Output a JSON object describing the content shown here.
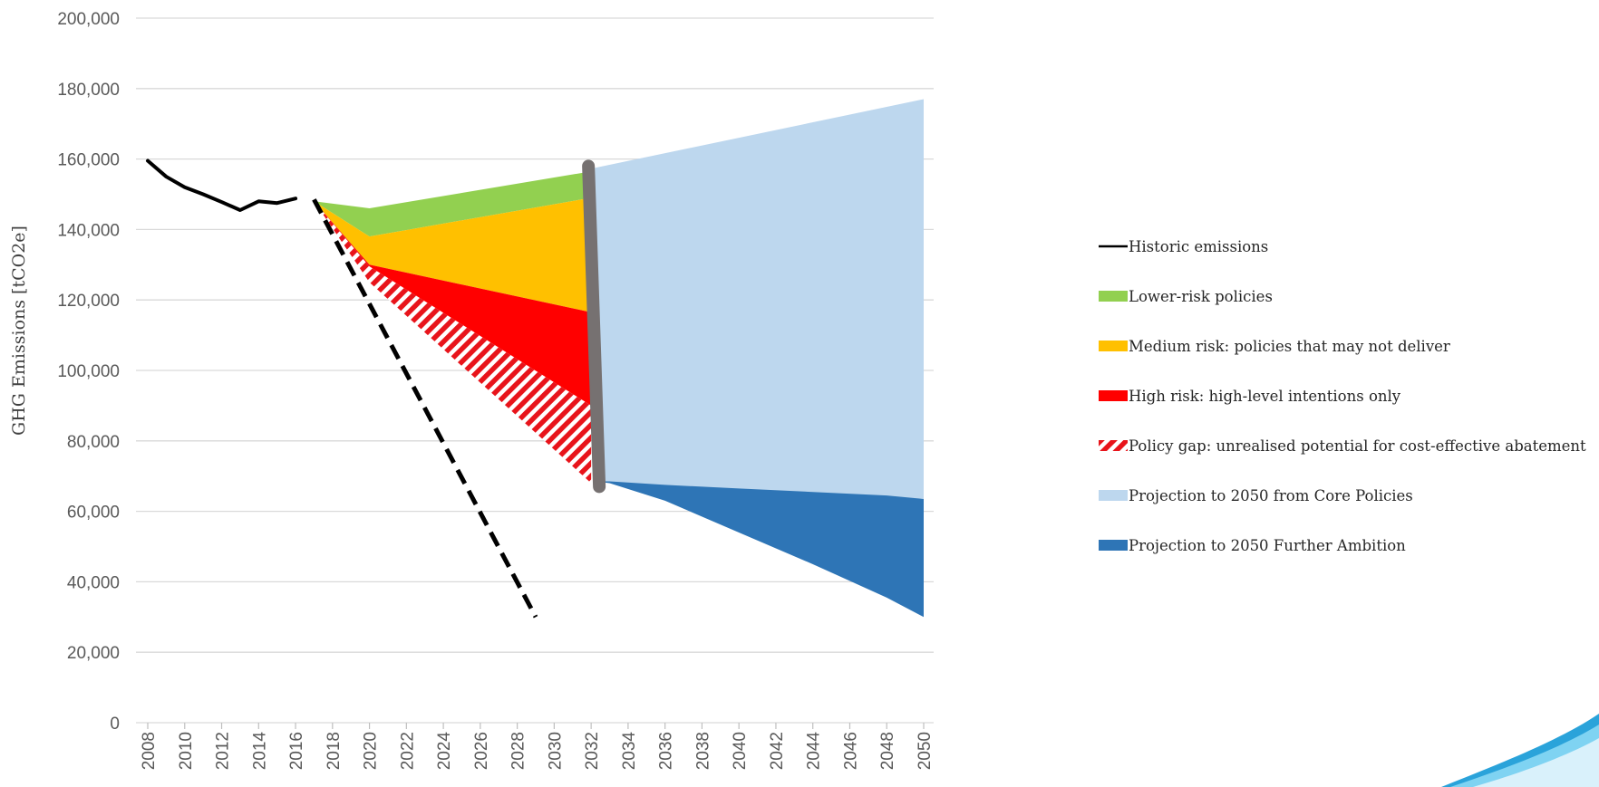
{
  "chart_data": {
    "type": "area",
    "ylabel": "GHG Emissions [tCO2e]",
    "xlabel": "",
    "ylim": [
      0,
      200000
    ],
    "yticks": [
      0,
      20000,
      40000,
      60000,
      80000,
      100000,
      120000,
      140000,
      160000,
      180000,
      200000
    ],
    "ytick_labels": [
      "0",
      "20,000",
      "40,000",
      "60,000",
      "80,000",
      "100,000",
      "120,000",
      "140,000",
      "160,000",
      "180,000",
      "200,000"
    ],
    "xlim": [
      2008,
      2050
    ],
    "xticks": [
      "2008",
      "2010",
      "2012",
      "2014",
      "2016",
      "2018",
      "2020",
      "2022",
      "2024",
      "2026",
      "2028",
      "2030",
      "2032",
      "2034",
      "2036",
      "2038",
      "2040",
      "2042",
      "2044",
      "2046",
      "2048",
      "2050"
    ],
    "grid": "horizontal",
    "legend_position": "right",
    "colors": {
      "historic": "#000000",
      "lower": "#92d050",
      "medium": "#ffc000",
      "high": "#ff0000",
      "gap_stripe": "#e8141b",
      "core": "#bdd7ee",
      "further": "#2e75b6",
      "divider": "#767171",
      "target_line": "#000000"
    },
    "historic": {
      "x": [
        2008,
        2009,
        2010,
        2011,
        2012,
        2013,
        2014,
        2015,
        2016
      ],
      "y": [
        159500,
        155000,
        152000,
        150000,
        147800,
        145500,
        148000,
        147500,
        148800
      ]
    },
    "target_line": {
      "x": [
        2017,
        2029
      ],
      "y": [
        148500,
        30000
      ]
    },
    "divider_x": 2032.2,
    "divider_y": [
      67000,
      158000
    ],
    "bands": {
      "x": [
        2017,
        2020,
        2032
      ],
      "lower_top": [
        148000,
        146000,
        156500
      ],
      "lower_bottom": [
        148000,
        138000,
        149000
      ],
      "medium_bottom": [
        148000,
        130000,
        116500
      ],
      "high_bottom": [
        148000,
        129500,
        90000
      ],
      "gap_bottom": [
        148000,
        125000,
        68000
      ]
    },
    "core_projection": {
      "x": [
        2032.2,
        2050
      ],
      "top": [
        157500,
        177000
      ],
      "bottom": [
        68500,
        63500
      ]
    },
    "further_projection": {
      "x": [
        2032.2,
        2033,
        2036,
        2040,
        2044,
        2048,
        2050
      ],
      "top": [
        68500,
        68500,
        67500,
        66500,
        65500,
        64500,
        63500
      ],
      "bottom": [
        68500,
        68000,
        63000,
        54000,
        45000,
        35500,
        30000
      ]
    },
    "legend": [
      {
        "label": "Historic emissions",
        "key": "historic",
        "swatch": "line"
      },
      {
        "label": "Lower-risk policies",
        "key": "lower",
        "swatch": "box"
      },
      {
        "label": "Medium risk: policies that may not deliver",
        "key": "medium",
        "swatch": "box"
      },
      {
        "label": "High risk: high-level intentions only",
        "key": "high",
        "swatch": "box"
      },
      {
        "label": "Policy gap: unrealised potential for cost-effective abatement",
        "key": "gap_stripe",
        "swatch": "stripe"
      },
      {
        "label": "Projection to 2050 from Core Policies",
        "key": "core",
        "swatch": "box"
      },
      {
        "label": "Projection to 2050 Further Ambition",
        "key": "further",
        "swatch": "box"
      }
    ]
  }
}
